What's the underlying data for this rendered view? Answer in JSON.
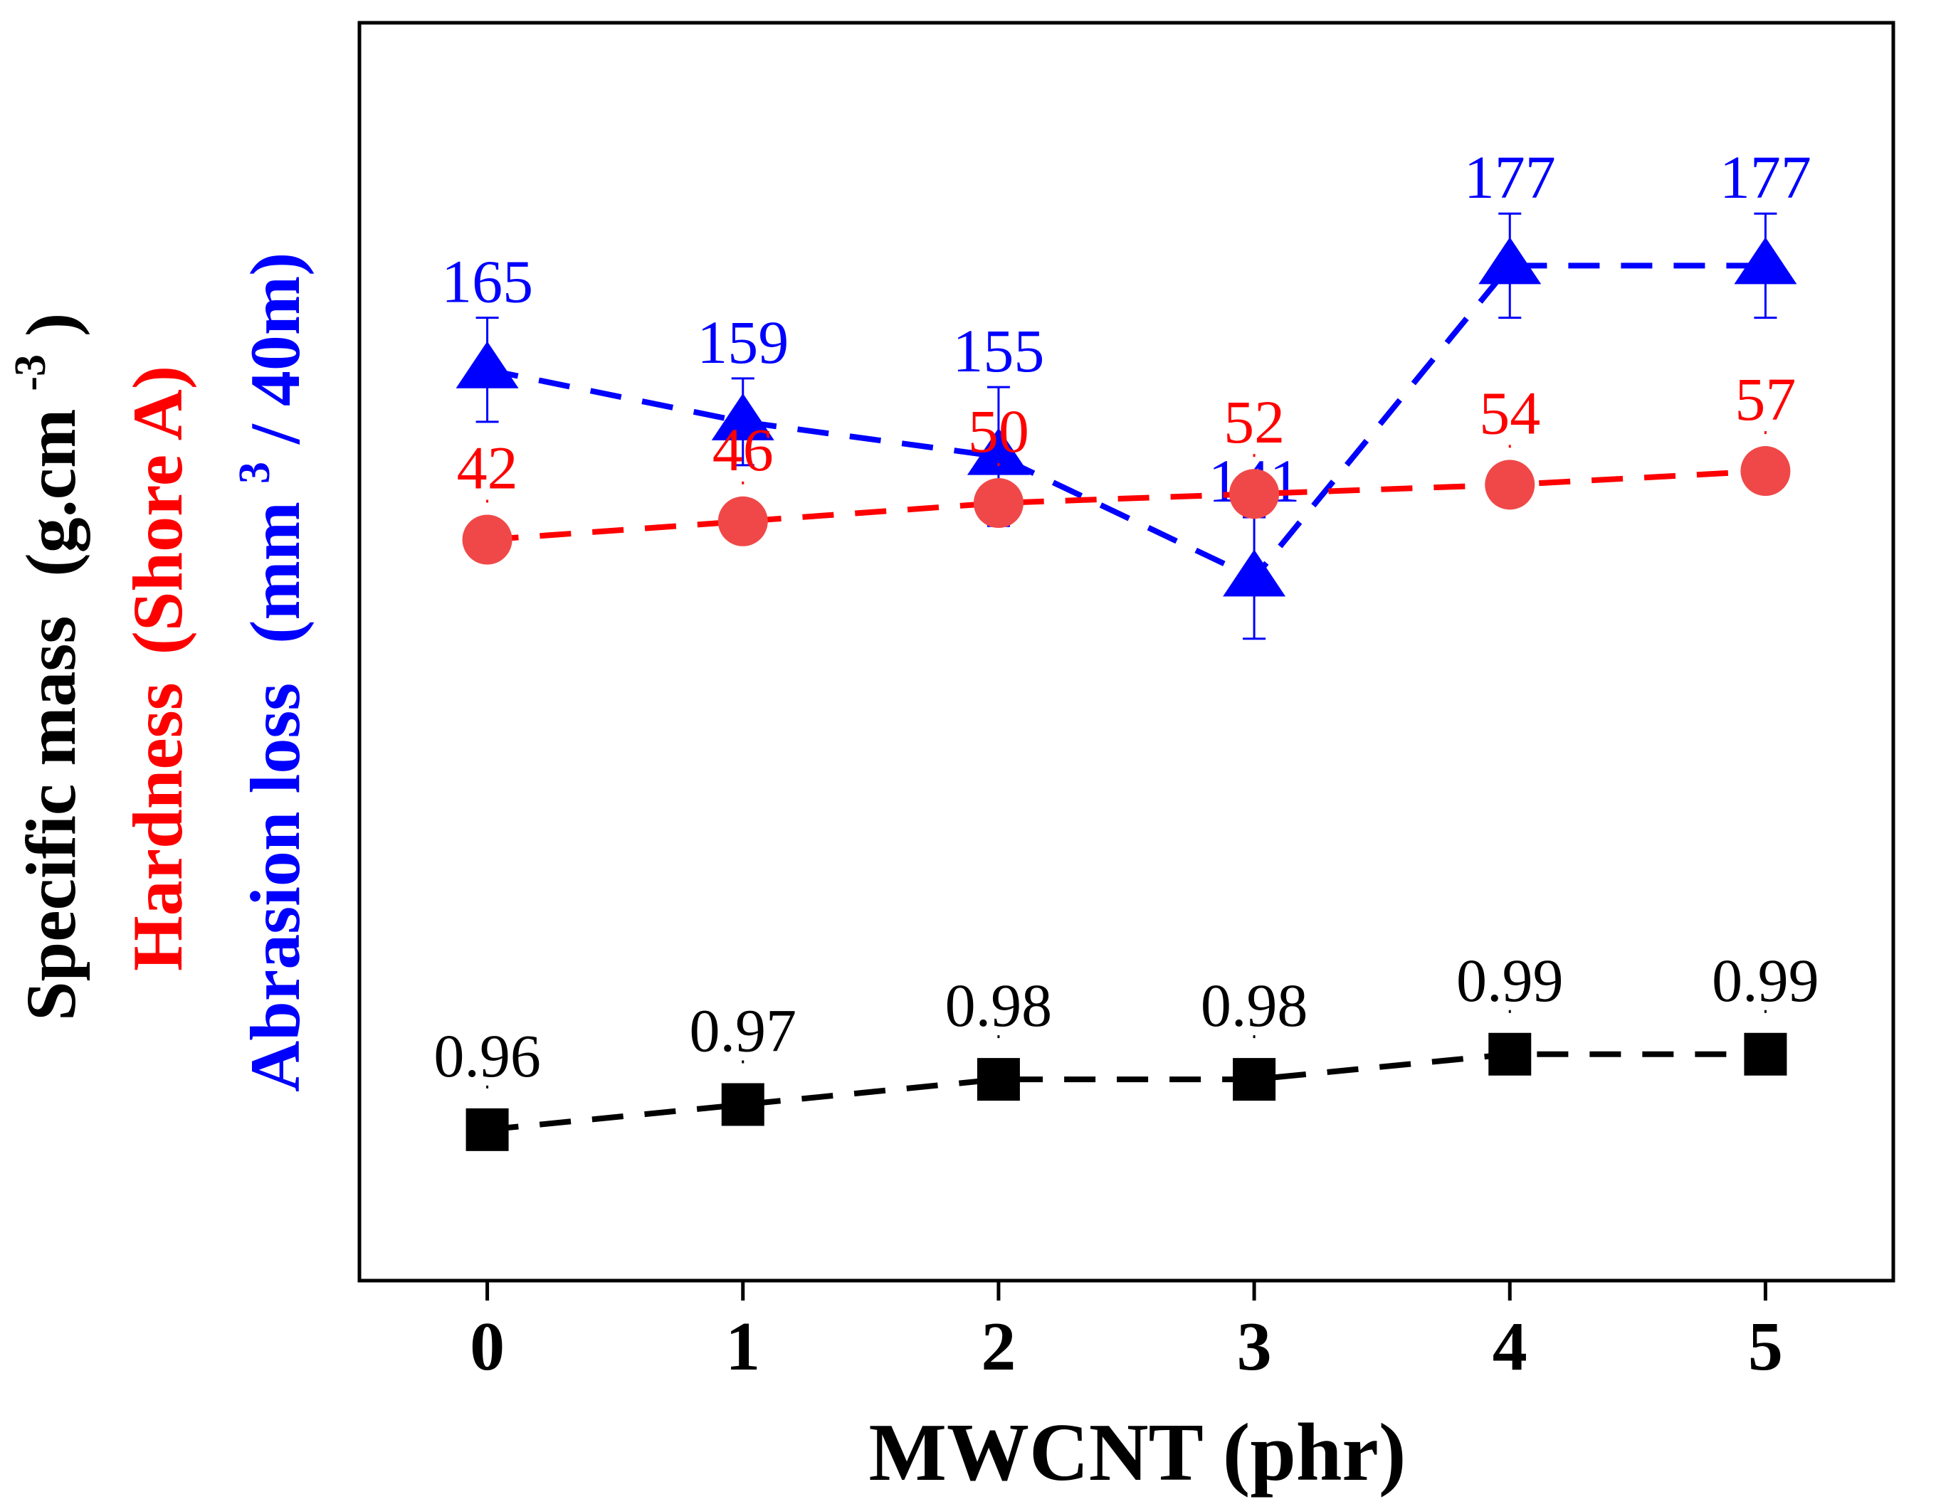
{
  "chart_data": {
    "type": "line",
    "xlabel": "MWCNT (phr)",
    "x": [
      0,
      1,
      2,
      3,
      4,
      5
    ],
    "xlim": [
      -0.5,
      5.5
    ],
    "ylabels": {
      "specific_mass": {
        "main": "Specific mass",
        "unit_open": "(g.cm",
        "unit_sup": "-3",
        "unit_close": ")",
        "color": "#000000"
      },
      "hardness": {
        "main": "Hardness",
        "unit": "(Shore A)",
        "color": "#ff0000"
      },
      "abrasion": {
        "main": "Abrasion loss",
        "unit_open": "(mm",
        "unit_sup": "3",
        "unit_close": " / 40m)",
        "color": "#0000ff"
      }
    },
    "series": [
      {
        "key": "abrasion",
        "color": "#0000ff",
        "marker": "triangle",
        "values": [
          165,
          159,
          155,
          141,
          177,
          177
        ],
        "labels": [
          "165",
          "159",
          "155",
          "141",
          "177",
          "177"
        ],
        "error": [
          6,
          5,
          8,
          7,
          6,
          6
        ],
        "plot_ylim": [
          60,
          205
        ]
      },
      {
        "key": "hardness",
        "color": "#ff0000",
        "marker_fill": "#f04848",
        "marker": "circle",
        "values": [
          42,
          46,
          50,
          52,
          54,
          57
        ],
        "labels": [
          "42",
          "46",
          "50",
          "52",
          "54",
          "57"
        ],
        "plot_ylim": [
          -120,
          155
        ]
      },
      {
        "key": "specific_mass",
        "color": "#000000",
        "marker": "square",
        "values": [
          0.96,
          0.97,
          0.98,
          0.98,
          0.99,
          0.99
        ],
        "labels": [
          "0.96",
          "0.97",
          "0.98",
          "0.98",
          "0.99",
          "0.99"
        ],
        "plot_ylim": [
          0.9,
          1.4
        ]
      }
    ]
  }
}
